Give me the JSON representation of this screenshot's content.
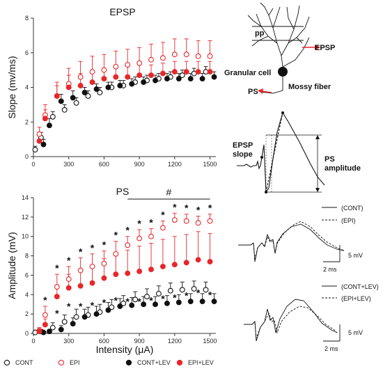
{
  "chart_data": [
    {
      "type": "scatter",
      "title": "EPSP",
      "xlabel": "",
      "ylabel": "Slope (mv/ms)",
      "xlim": [
        0,
        1550
      ],
      "ylim": [
        0,
        8
      ],
      "xticks": [
        "0",
        "300",
        "600",
        "900",
        "1200",
        "1500"
      ],
      "yticks": [
        "0",
        "2",
        "4",
        "6",
        "8"
      ],
      "x": [
        50,
        100,
        200,
        300,
        400,
        500,
        600,
        700,
        800,
        900,
        1000,
        1100,
        1200,
        1300,
        1400,
        1500
      ],
      "series": [
        {
          "name": "CONT",
          "values": [
            0.4,
            1.1,
            2.3,
            2.7,
            3.1,
            3.5,
            3.7,
            4.0,
            4.1,
            4.3,
            4.4,
            4.5,
            4.6,
            4.7,
            4.8,
            4.9
          ],
          "errors": [
            0.2,
            0.3,
            0.3,
            0.3,
            0.3,
            0.3,
            0.3,
            0.3,
            0.3,
            0.3,
            0.3,
            0.3,
            0.3,
            0.3,
            0.3,
            0.3
          ]
        },
        {
          "name": "EPI",
          "values": [
            1.3,
            2.4,
            3.5,
            4.2,
            4.6,
            4.9,
            5.0,
            5.2,
            5.3,
            5.4,
            5.6,
            5.7,
            5.9,
            5.9,
            5.8,
            5.8
          ],
          "errors": [
            0.4,
            0.6,
            0.8,
            0.9,
            0.9,
            0.9,
            0.9,
            0.9,
            0.9,
            0.9,
            0.9,
            0.9,
            0.9,
            0.9,
            0.9,
            0.9
          ]
        },
        {
          "name": "CONT+LEV",
          "values": [
            0.7,
            1.8,
            3.2,
            3.4,
            3.7,
            3.9,
            4.0,
            4.1,
            4.2,
            4.3,
            4.4,
            4.5,
            4.5,
            4.5,
            4.5,
            4.6
          ],
          "errors": [
            0.3,
            0.4,
            0.4,
            0.4,
            0.3,
            0.3,
            0.3,
            0.3,
            0.3,
            0.3,
            0.3,
            0.3,
            0.3,
            0.3,
            0.3,
            0.3
          ]
        },
        {
          "name": "EPI+LEV",
          "values": [
            0.9,
            2.2,
            3.5,
            4.0,
            4.1,
            4.3,
            4.5,
            4.6,
            4.6,
            4.7,
            4.7,
            4.8,
            4.9,
            4.9,
            4.9,
            4.9
          ],
          "errors": [
            0.3,
            0.5,
            0.6,
            0.7,
            0.7,
            0.6,
            0.6,
            0.6,
            0.6,
            0.6,
            0.6,
            0.6,
            0.6,
            0.6,
            0.6,
            0.6
          ]
        }
      ]
    },
    {
      "type": "scatter",
      "title": "PS",
      "significance_mark": "#",
      "xlabel": "Intensity (μA)",
      "ylabel": "Amplitude (mV)",
      "xlim": [
        0,
        1550
      ],
      "ylim": [
        0,
        14
      ],
      "xticks": [
        "0",
        "300",
        "600",
        "900",
        "1200",
        "1500"
      ],
      "yticks": [
        "0",
        "2",
        "4",
        "6",
        "8",
        "10",
        "12",
        "14"
      ],
      "x": [
        50,
        100,
        200,
        300,
        400,
        500,
        600,
        700,
        800,
        900,
        1000,
        1100,
        1200,
        1300,
        1400,
        1500
      ],
      "star_mark": "*",
      "stars_epi": [
        false,
        true,
        true,
        true,
        true,
        true,
        true,
        true,
        true,
        true,
        true,
        true,
        true,
        true,
        true,
        true
      ],
      "stars_epilev": [
        false,
        false,
        true,
        true,
        true,
        true,
        true,
        true,
        true,
        true,
        true,
        true,
        true,
        true,
        true,
        true
      ],
      "series": [
        {
          "name": "CONT",
          "values": [
            0.1,
            0.2,
            0.6,
            1.2,
            1.7,
            1.9,
            2.2,
            2.7,
            3.1,
            3.5,
            3.8,
            4.1,
            4.4,
            4.5,
            4.6,
            4.5
          ],
          "errors": [
            0.1,
            0.2,
            0.5,
            0.7,
            0.8,
            0.8,
            0.8,
            0.8,
            0.8,
            0.8,
            0.8,
            0.8,
            0.8,
            0.8,
            0.8,
            0.8
          ]
        },
        {
          "name": "EPI",
          "values": [
            0.3,
            1.9,
            4.8,
            5.6,
            6.5,
            6.9,
            7.2,
            8.2,
            9.1,
            9.8,
            10.0,
            10.9,
            11.7,
            11.6,
            11.4,
            11.6
          ],
          "errors": [
            0.3,
            0.9,
            1.3,
            1.3,
            1.3,
            1.3,
            1.3,
            1.3,
            0.9,
            0.9,
            0.8,
            0.7,
            0.7,
            0.7,
            0.7,
            0.7
          ]
        },
        {
          "name": "CONT+LEV",
          "values": [
            0.1,
            0.2,
            0.4,
            1.0,
            1.7,
            2.0,
            2.4,
            2.8,
            2.9,
            3.0,
            3.0,
            3.1,
            3.2,
            3.3,
            3.3,
            3.3
          ],
          "errors": [
            0.1,
            0.2,
            0.4,
            0.6,
            0.8,
            0.8,
            0.8,
            0.8,
            0.8,
            0.8,
            0.8,
            0.8,
            0.8,
            0.8,
            0.8,
            0.8
          ]
        },
        {
          "name": "EPI+LEV",
          "values": [
            0.2,
            0.9,
            3.8,
            4.7,
            4.9,
            5.2,
            5.7,
            6.1,
            6.2,
            6.4,
            6.6,
            6.9,
            7.1,
            7.3,
            7.6,
            7.4
          ],
          "errors": [
            0.2,
            0.6,
            1.2,
            1.4,
            1.6,
            1.8,
            2.0,
            2.2,
            2.4,
            2.6,
            2.7,
            2.8,
            2.9,
            2.9,
            2.9,
            2.9
          ]
        }
      ]
    }
  ],
  "legend": [
    {
      "label": "CONT",
      "marker": "open-black"
    },
    {
      "label": "EPI",
      "marker": "open-red"
    },
    {
      "label": "CONT+LEV",
      "marker": "filled-black"
    },
    {
      "label": "EPI+LEV",
      "marker": "filled-red"
    }
  ],
  "schematic": {
    "labels": {
      "pp": "pp",
      "epsp": "EPSP",
      "granular_cell": "Granular cell",
      "ps": "PS",
      "mossy_fiber": "Mossy fiber",
      "epsp_slope": "EPSP\nslope",
      "ps_amplitude": "PS\namplitude"
    }
  },
  "traces": {
    "panel1": {
      "legend": [
        "(CONT)",
        "(EPI)"
      ],
      "scale_y": "5 mV",
      "scale_x": "2 ms"
    },
    "panel2": {
      "legend": [
        "(CONT+LEV)",
        "(EPI+LEV)"
      ],
      "scale_y": "5 mV",
      "scale_x": "2 ms"
    }
  },
  "colors": {
    "red": "#e8262a",
    "black": "#111111",
    "axis": "#333333"
  }
}
